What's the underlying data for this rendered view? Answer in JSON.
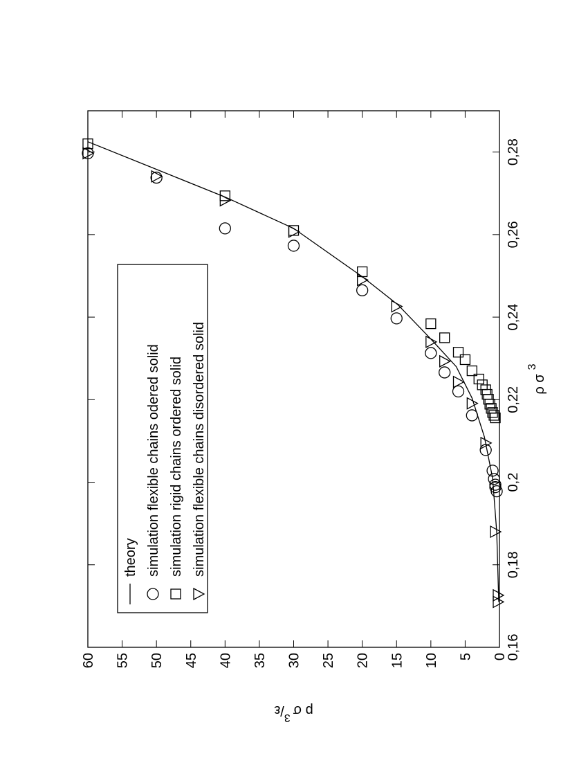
{
  "chart_data": {
    "type": "scatter",
    "x_label": "ρ σ",
    "x_label_sup": "3",
    "y_label": "p σ",
    "y_label_sup": "3",
    "y_label_tail": "/ε",
    "xlim": [
      0.16,
      0.29
    ],
    "ylim": [
      0,
      60
    ],
    "xticks": [
      {
        "value": 0.16,
        "label": "0,16"
      },
      {
        "value": 0.18,
        "label": "0,18"
      },
      {
        "value": 0.2,
        "label": "0,2"
      },
      {
        "value": 0.22,
        "label": "0,22"
      },
      {
        "value": 0.24,
        "label": "0,24"
      },
      {
        "value": 0.26,
        "label": "0,26"
      },
      {
        "value": 0.28,
        "label": "0,28"
      }
    ],
    "yticks": [
      0,
      5,
      10,
      15,
      20,
      25,
      30,
      35,
      40,
      45,
      50,
      55,
      60
    ],
    "series": [
      {
        "name": "theory",
        "marker": "line",
        "color": "#000000",
        "x": [
          0.171,
          0.188,
          0.201,
          0.211,
          0.2204,
          0.228,
          0.2347,
          0.243,
          0.2498,
          0.2615,
          0.2691,
          0.2758,
          0.2825
        ],
        "values": [
          0.1,
          0.4,
          1,
          2.2,
          4,
          6.3,
          10,
          14.8,
          20,
          30,
          40,
          50,
          60
        ]
      },
      {
        "name": "simulation flexible chains odered solid",
        "marker": "circle",
        "color": "#000000",
        "x": [
          0.2797,
          0.2738,
          0.2615,
          0.2573,
          0.2465,
          0.2397,
          0.2313,
          0.2266,
          0.222,
          0.2162,
          0.2078,
          0.2028,
          0.2008,
          0.1994,
          0.1988,
          0.1978
        ],
        "values": [
          60,
          50,
          40,
          30,
          20,
          15,
          10,
          8,
          6,
          4,
          2,
          1,
          0.8,
          0.6,
          0.6,
          0.4
        ]
      },
      {
        "name": "simulation rigid chains ordered solid",
        "marker": "square",
        "color": "#000000",
        "x": [
          0.282,
          0.2694,
          0.261,
          0.251,
          0.2384,
          0.235,
          0.2315,
          0.2297,
          0.227,
          0.225,
          0.2236,
          0.2224,
          0.2213,
          0.2201,
          0.2189,
          0.2179,
          0.2169,
          0.2162,
          0.2156
        ],
        "values": [
          60,
          40,
          30,
          20,
          10,
          8,
          6,
          5,
          4,
          3,
          2.5,
          2,
          1.8,
          1.6,
          1.4,
          1.2,
          1,
          0.8,
          0.6
        ]
      },
      {
        "name": "simulation flexible chains disordered solid",
        "marker": "triangle",
        "color": "#000000",
        "x": [
          0.2797,
          0.2741,
          0.2683,
          0.2607,
          0.249,
          0.2426,
          0.234,
          0.2293,
          0.2243,
          0.2191,
          0.2095,
          0.188,
          0.1726,
          0.171
        ],
        "values": [
          60,
          50,
          40,
          30,
          20,
          15,
          10,
          8,
          6,
          4,
          2,
          0.6,
          0.2,
          0.2
        ]
      }
    ]
  }
}
